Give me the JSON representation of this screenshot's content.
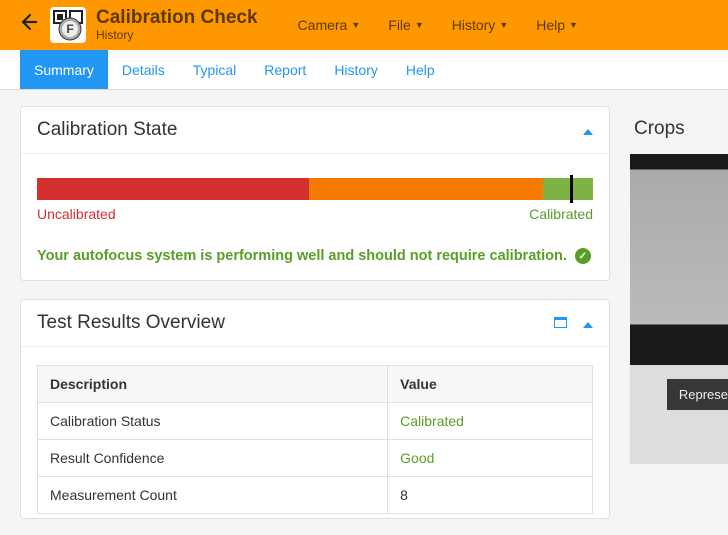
{
  "header": {
    "title": "Calibration Check",
    "subtitle": "History",
    "menu": [
      "Camera",
      "File",
      "History",
      "Help"
    ]
  },
  "subnav": {
    "items": [
      "Summary",
      "Details",
      "Typical",
      "Report",
      "History",
      "Help"
    ],
    "active_index": 0
  },
  "calibration_state": {
    "card_title": "Calibration State",
    "bar": {
      "segments": [
        {
          "color": "#d32f2f",
          "pct": 49
        },
        {
          "color": "#f57c00",
          "pct": 42
        },
        {
          "color": "#7cb342",
          "pct": 9
        }
      ],
      "marker_pct_within_green": 55
    },
    "label_low": "Uncalibrated",
    "label_high": "Calibrated",
    "status_message": "Your autofocus system is performing well and should not require calibration."
  },
  "test_results": {
    "card_title": "Test Results Overview",
    "columns": [
      "Description",
      "Value"
    ],
    "rows": [
      {
        "desc": "Calibration Status",
        "value": "Calibrated",
        "value_class": "val-green"
      },
      {
        "desc": "Result Confidence",
        "value": "Good",
        "value_class": "val-green"
      },
      {
        "desc": "Measurement Count",
        "value": "8",
        "value_class": ""
      }
    ]
  },
  "crops": {
    "title": "Crops",
    "overlay_label": "Represe"
  },
  "colors": {
    "brand_orange": "#ff9800",
    "link_blue": "#2196f3",
    "good_green": "#5a9e27",
    "bar_red": "#d32f2f",
    "bar_orange": "#f57c00",
    "bar_green": "#7cb342"
  }
}
